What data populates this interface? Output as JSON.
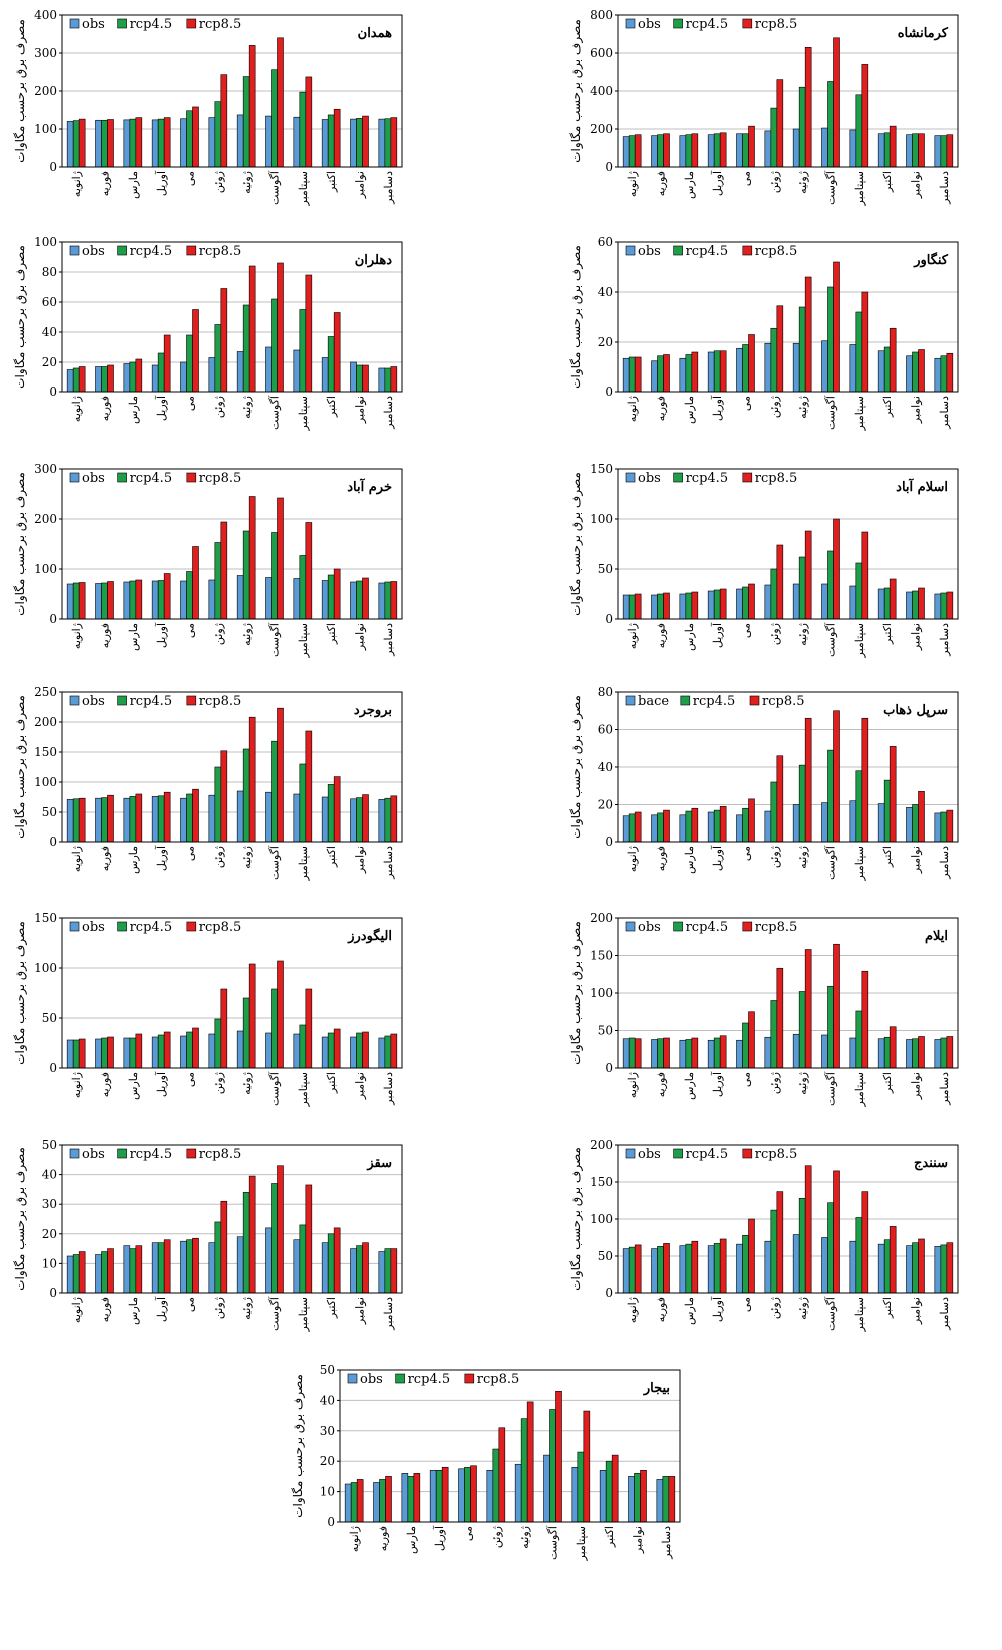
{
  "months": [
    "ژانویه",
    "فوریه",
    "مارس",
    "آوریل",
    "می",
    "ژوئن",
    "ژوئیه",
    "آگوست",
    "سپتامبر",
    "اکتبر",
    "نوامبر",
    "دسامبر"
  ],
  "ylabel": "مصرف برق برحسب مگاوات",
  "colors": {
    "obs": "#5b9bd5",
    "rcp45": "#1f9e4a",
    "rcp85": "#e01f1f"
  },
  "chart_data": [
    {
      "type": "bar",
      "title": "همدان",
      "ylim": [
        0,
        400
      ],
      "yticks": [
        0,
        100,
        200,
        300,
        400
      ],
      "series": [
        {
          "name": "obs",
          "values": [
            120,
            123,
            124,
            124,
            127,
            130,
            137,
            134,
            131,
            125,
            126,
            126
          ]
        },
        {
          "name": "rcp4.5",
          "values": [
            122,
            123,
            126,
            126,
            148,
            172,
            238,
            256,
            197,
            137,
            128,
            127
          ]
        },
        {
          "name": "rcp8.5",
          "values": [
            126,
            125,
            130,
            130,
            158,
            243,
            320,
            340,
            237,
            152,
            134,
            130
          ]
        }
      ]
    },
    {
      "type": "bar",
      "title": "کرمانشاه",
      "ylim": [
        0,
        800
      ],
      "yticks": [
        0,
        200,
        400,
        600,
        800
      ],
      "series": [
        {
          "name": "obs",
          "values": [
            160,
            165,
            165,
            170,
            175,
            190,
            200,
            205,
            195,
            175,
            170,
            165
          ]
        },
        {
          "name": "rcp4.5",
          "values": [
            165,
            170,
            170,
            175,
            175,
            310,
            420,
            450,
            380,
            180,
            175,
            165
          ]
        },
        {
          "name": "rcp8.5",
          "values": [
            170,
            175,
            175,
            180,
            215,
            460,
            630,
            680,
            540,
            215,
            175,
            170
          ]
        }
      ]
    },
    {
      "type": "bar",
      "title": "دهلران",
      "ylim": [
        0,
        100
      ],
      "yticks": [
        0,
        20,
        40,
        60,
        80,
        100
      ],
      "series": [
        {
          "name": "obs",
          "values": [
            15,
            17,
            19,
            18,
            20,
            23,
            27,
            30,
            28,
            23,
            20,
            16
          ]
        },
        {
          "name": "rcp4.5",
          "values": [
            16,
            17,
            20,
            26,
            38,
            45,
            58,
            62,
            55,
            37,
            18,
            16
          ]
        },
        {
          "name": "rcp8.5",
          "values": [
            17,
            18,
            22,
            38,
            55,
            69,
            84,
            86,
            78,
            53,
            18,
            17
          ]
        }
      ]
    },
    {
      "type": "bar",
      "title": "کنگاور",
      "ylim": [
        0,
        60
      ],
      "yticks": [
        0,
        20,
        40,
        60
      ],
      "series": [
        {
          "name": "obs",
          "values": [
            13.5,
            12.5,
            13.5,
            16,
            17.5,
            19.5,
            19.5,
            20.5,
            19,
            16.5,
            14.5,
            13.5
          ]
        },
        {
          "name": "rcp4.5",
          "values": [
            14,
            14.5,
            15,
            16.5,
            19,
            25.5,
            34,
            42,
            32,
            18,
            16,
            14.5
          ]
        },
        {
          "name": "rcp8.5",
          "values": [
            14,
            15,
            16,
            16.5,
            23,
            34.5,
            46,
            52,
            40,
            25.5,
            17,
            15.5
          ]
        }
      ]
    },
    {
      "type": "bar",
      "title": "خرم آباد",
      "ylim": [
        0,
        300
      ],
      "yticks": [
        0,
        100,
        200,
        300
      ],
      "series": [
        {
          "name": "obs",
          "values": [
            70,
            71,
            74,
            76,
            76,
            78,
            87,
            83,
            81,
            77,
            74,
            72
          ]
        },
        {
          "name": "rcp4.5",
          "values": [
            72,
            72,
            76,
            77,
            95,
            153,
            176,
            173,
            127,
            88,
            76,
            74
          ]
        },
        {
          "name": "rcp8.5",
          "values": [
            73,
            75,
            78,
            91,
            145,
            194,
            245,
            242,
            193,
            100,
            82,
            75
          ]
        }
      ]
    },
    {
      "type": "bar",
      "title": "اسلام آباد",
      "ylim": [
        0,
        150
      ],
      "yticks": [
        0,
        50,
        100,
        150
      ],
      "series": [
        {
          "name": "obs",
          "values": [
            24,
            24,
            25,
            28,
            30,
            34,
            35,
            35,
            33,
            30,
            27,
            25
          ]
        },
        {
          "name": "rcp4.5",
          "values": [
            24,
            25,
            26,
            29,
            32,
            50,
            62,
            68,
            56,
            31,
            28,
            26
          ]
        },
        {
          "name": "rcp8.5",
          "values": [
            25,
            26,
            27,
            30,
            35,
            74,
            88,
            100,
            87,
            40,
            31,
            27
          ]
        }
      ]
    },
    {
      "type": "bar",
      "title": "بروجرد",
      "ylim": [
        0,
        250
      ],
      "yticks": [
        0,
        50,
        100,
        150,
        200,
        250
      ],
      "series": [
        {
          "name": "obs",
          "values": [
            71,
            73,
            73,
            76,
            73,
            78,
            85,
            83,
            80,
            75,
            72,
            71
          ]
        },
        {
          "name": "rcp4.5",
          "values": [
            72,
            74,
            76,
            77,
            80,
            125,
            155,
            168,
            130,
            96,
            74,
            73
          ]
        },
        {
          "name": "rcp8.5",
          "values": [
            73,
            78,
            80,
            83,
            88,
            152,
            208,
            223,
            185,
            109,
            79,
            77
          ]
        }
      ]
    },
    {
      "type": "bar",
      "title": "سرپل ذهاب",
      "ylim": [
        0,
        80
      ],
      "yticks": [
        0,
        20,
        40,
        60,
        80
      ],
      "series": [
        {
          "name": "bace",
          "values": [
            14,
            14.5,
            14.5,
            16,
            14.5,
            16.5,
            20,
            21,
            22,
            20.5,
            18.5,
            15.5
          ]
        },
        {
          "name": "rcp4.5",
          "values": [
            15,
            15.5,
            16.5,
            17,
            18,
            32,
            41,
            49,
            38,
            33,
            20,
            16
          ]
        },
        {
          "name": "rcp8.5",
          "values": [
            16,
            17,
            18,
            19,
            23,
            46,
            66,
            70,
            66,
            51,
            27,
            17
          ]
        }
      ]
    },
    {
      "type": "bar",
      "title": "الیگودرز",
      "ylim": [
        0,
        150
      ],
      "yticks": [
        0,
        50,
        100,
        150
      ],
      "series": [
        {
          "name": "obs",
          "values": [
            28,
            29,
            30,
            31,
            32,
            34,
            37,
            35,
            34,
            31,
            31,
            30
          ]
        },
        {
          "name": "rcp4.5",
          "values": [
            28,
            30,
            30,
            33,
            36,
            49,
            70,
            79,
            43,
            35,
            35,
            32
          ]
        },
        {
          "name": "rcp8.5",
          "values": [
            29,
            31,
            34,
            36,
            40,
            79,
            104,
            107,
            79,
            39,
            36,
            34
          ]
        }
      ]
    },
    {
      "type": "bar",
      "title": "ایلام",
      "ylim": [
        0,
        200
      ],
      "yticks": [
        0,
        50,
        100,
        150,
        200
      ],
      "series": [
        {
          "name": "obs",
          "values": [
            39,
            38,
            37,
            37,
            37,
            41,
            45,
            44,
            40,
            39,
            38,
            38
          ]
        },
        {
          "name": "rcp4.5",
          "values": [
            40,
            39,
            38,
            40,
            60,
            90,
            102,
            109,
            76,
            41,
            39,
            40
          ]
        },
        {
          "name": "rcp8.5",
          "values": [
            39,
            40,
            40,
            43,
            75,
            133,
            158,
            165,
            129,
            55,
            42,
            42
          ]
        }
      ]
    },
    {
      "type": "bar",
      "title": "سقز",
      "ylim": [
        0,
        50
      ],
      "yticks": [
        0,
        10,
        20,
        30,
        40,
        50
      ],
      "series": [
        {
          "name": "obs",
          "values": [
            12.5,
            13,
            16,
            17,
            17.5,
            17,
            19,
            22,
            18,
            17,
            15,
            14
          ]
        },
        {
          "name": "rcp4.5",
          "values": [
            13,
            14,
            15,
            17,
            18,
            24,
            34,
            37,
            23,
            20,
            16,
            15
          ]
        },
        {
          "name": "rcp8.5",
          "values": [
            14,
            15,
            16,
            18,
            18.5,
            31,
            39.5,
            43,
            36.5,
            22,
            17,
            15
          ]
        }
      ]
    },
    {
      "type": "bar",
      "title": "سنندج",
      "ylim": [
        0,
        200
      ],
      "yticks": [
        0,
        50,
        100,
        150,
        200
      ],
      "series": [
        {
          "name": "obs",
          "values": [
            60,
            60,
            64,
            64,
            66,
            70,
            79,
            75,
            70,
            66,
            64,
            63
          ]
        },
        {
          "name": "rcp4.5",
          "values": [
            62,
            63,
            66,
            67,
            78,
            112,
            128,
            122,
            102,
            72,
            68,
            65
          ]
        },
        {
          "name": "rcp8.5",
          "values": [
            65,
            67,
            70,
            73,
            100,
            137,
            172,
            165,
            137,
            90,
            73,
            68
          ]
        }
      ]
    },
    {
      "type": "bar",
      "title": "بیجار",
      "ylim": [
        0,
        50
      ],
      "yticks": [
        0,
        10,
        20,
        30,
        40,
        50
      ],
      "series": [
        {
          "name": "obs",
          "values": [
            12.5,
            13,
            16,
            17,
            17.5,
            17,
            19,
            22,
            18,
            17,
            15,
            14
          ]
        },
        {
          "name": "rcp4.5",
          "values": [
            13,
            14,
            15,
            17,
            18,
            24,
            34,
            37,
            23,
            20,
            16,
            15
          ]
        },
        {
          "name": "rcp8.5",
          "values": [
            14,
            15,
            16,
            18,
            18.5,
            31,
            39.5,
            43,
            36.5,
            22,
            17,
            15
          ]
        }
      ]
    }
  ]
}
